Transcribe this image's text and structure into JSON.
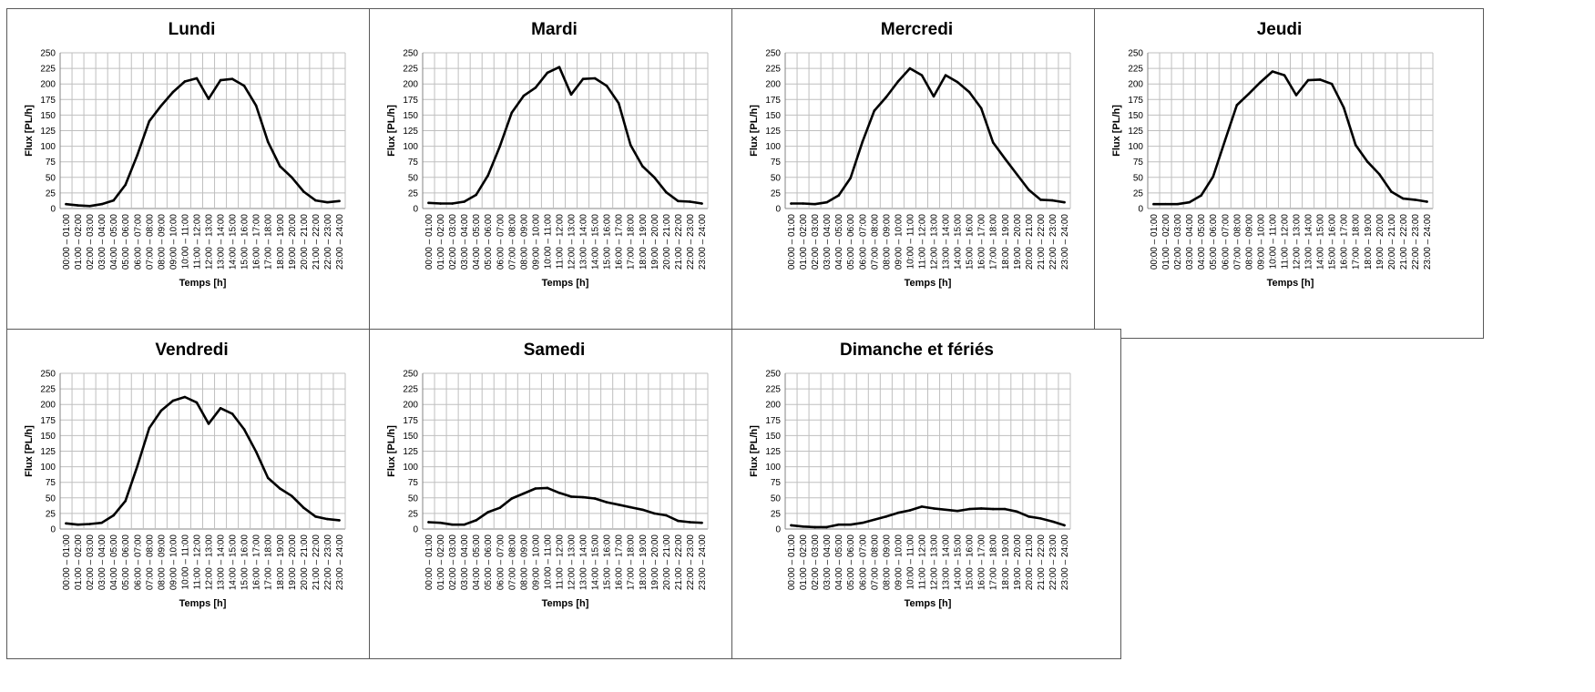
{
  "chart_data": [
    {
      "type": "line",
      "title": "Lundi",
      "xlabel": "Temps [h]",
      "ylabel": "Flux [PL/h]",
      "ylim": [
        0,
        250
      ],
      "yticks": [
        0,
        25,
        50,
        75,
        100,
        125,
        150,
        175,
        200,
        225,
        250
      ],
      "grid": true,
      "categories": [
        "00:00 – 01:00",
        "01:00 – 02:00",
        "02:00 – 03:00",
        "03:00 – 04:00",
        "04:00 – 05:00",
        "05:00 – 06:00",
        "06:00 – 07:00",
        "07:00 – 08:00",
        "08:00 – 09:00",
        "09:00 – 10:00",
        "10:00 – 11:00",
        "11:00 – 12:00",
        "12:00 – 13:00",
        "13:00 – 14:00",
        "14:00 – 15:00",
        "15:00 – 16:00",
        "16:00 – 17:00",
        "17:00 – 18:00",
        "18:00 – 19:00",
        "19:00 – 20:00",
        "20:00 – 21:00",
        "21:00 – 22:00",
        "22:00 – 23:00",
        "23:00 – 24:00"
      ],
      "values": [
        7,
        5,
        4,
        7,
        13,
        38,
        86,
        140,
        165,
        187,
        204,
        209,
        176,
        206,
        208,
        197,
        165,
        107,
        68,
        50,
        27,
        13,
        10,
        12
      ]
    },
    {
      "type": "line",
      "title": "Mardi",
      "xlabel": "Temps [h]",
      "ylabel": "Flux [PL/h]",
      "ylim": [
        0,
        250
      ],
      "yticks": [
        0,
        25,
        50,
        75,
        100,
        125,
        150,
        175,
        200,
        225,
        250
      ],
      "grid": true,
      "categories": [
        "00:00 – 01:00",
        "01:00 – 02:00",
        "02:00 – 03:00",
        "03:00 – 04:00",
        "04:00 – 05:00",
        "05:00 – 06:00",
        "06:00 – 07:00",
        "07:00 – 08:00",
        "08:00 – 09:00",
        "09:00 – 10:00",
        "10:00 – 11:00",
        "11:00 – 12:00",
        "12:00 – 13:00",
        "13:00 – 14:00",
        "14:00 – 15:00",
        "15:00 – 16:00",
        "16:00 – 17:00",
        "17:00 – 18:00",
        "18:00 – 19:00",
        "19:00 – 20:00",
        "20:00 – 21:00",
        "21:00 – 22:00",
        "22:00 – 23:00",
        "23:00 – 24:00"
      ],
      "values": [
        9,
        8,
        8,
        11,
        22,
        53,
        100,
        154,
        181,
        194,
        218,
        227,
        183,
        208,
        209,
        197,
        169,
        102,
        68,
        50,
        26,
        12,
        11,
        8
      ]
    },
    {
      "type": "line",
      "title": "Mercredi",
      "xlabel": "Temps [h]",
      "ylabel": "Flux [PL/h]",
      "ylim": [
        0,
        250
      ],
      "yticks": [
        0,
        25,
        50,
        75,
        100,
        125,
        150,
        175,
        200,
        225,
        250
      ],
      "grid": true,
      "categories": [
        "00:00 – 01:00",
        "01:00 – 02:00",
        "02:00 – 03:00",
        "03:00 – 04:00",
        "04:00 – 05:00",
        "05:00 – 06:00",
        "06:00 – 07:00",
        "07:00 – 08:00",
        "08:00 – 09:00",
        "09:00 – 10:00",
        "10:00 – 11:00",
        "11:00 – 12:00",
        "12:00 – 13:00",
        "13:00 – 14:00",
        "14:00 – 15:00",
        "15:00 – 16:00",
        "16:00 – 17:00",
        "17:00 – 18:00",
        "18:00 – 19:00",
        "19:00 – 20:00",
        "20:00 – 21:00",
        "21:00 – 22:00",
        "22:00 – 23:00",
        "23:00 – 24:00"
      ],
      "values": [
        8,
        8,
        7,
        10,
        21,
        49,
        107,
        157,
        179,
        204,
        225,
        214,
        180,
        214,
        203,
        187,
        161,
        106,
        80,
        55,
        30,
        14,
        13,
        10
      ]
    },
    {
      "type": "line",
      "title": "Jeudi",
      "xlabel": "Temps [h]",
      "ylabel": "Flux [PL/h]",
      "ylim": [
        0,
        250
      ],
      "yticks": [
        0,
        25,
        50,
        75,
        100,
        125,
        150,
        175,
        200,
        225,
        250
      ],
      "grid": true,
      "categories": [
        "00:00 – 01:00",
        "01:00 – 02:00",
        "02:00 – 03:00",
        "03:00 – 04:00",
        "04:00 – 05:00",
        "05:00 – 06:00",
        "06:00 – 07:00",
        "07:00 – 08:00",
        "08:00 – 09:00",
        "09:00 – 10:00",
        "10:00 – 11:00",
        "11:00 – 12:00",
        "12:00 – 13:00",
        "13:00 – 14:00",
        "14:00 – 15:00",
        "15:00 – 16:00",
        "16:00 – 17:00",
        "17:00 – 18:00",
        "18:00 – 19:00",
        "19:00 – 20:00",
        "20:00 – 21:00",
        "21:00 – 22:00",
        "22:00 – 23:00",
        "23:00 – 24:00"
      ],
      "values": [
        7,
        7,
        7,
        10,
        21,
        51,
        109,
        166,
        184,
        203,
        220,
        214,
        182,
        206,
        207,
        200,
        162,
        102,
        75,
        55,
        27,
        16,
        14,
        11
      ]
    },
    {
      "type": "line",
      "title": "Vendredi",
      "xlabel": "Temps [h]",
      "ylabel": "Flux [PL/h]",
      "ylim": [
        0,
        250
      ],
      "yticks": [
        0,
        25,
        50,
        75,
        100,
        125,
        150,
        175,
        200,
        225,
        250
      ],
      "grid": true,
      "categories": [
        "00:00 – 01:00",
        "01:00 – 02:00",
        "02:00 – 03:00",
        "03:00 – 04:00",
        "04:00 – 05:00",
        "05:00 – 06:00",
        "06:00 – 07:00",
        "07:00 – 08:00",
        "08:00 – 09:00",
        "09:00 – 10:00",
        "10:00 – 11:00",
        "11:00 – 12:00",
        "12:00 – 13:00",
        "13:00 – 14:00",
        "14:00 – 15:00",
        "15:00 – 16:00",
        "16:00 – 17:00",
        "17:00 – 18:00",
        "18:00 – 19:00",
        "19:00 – 20:00",
        "20:00 – 21:00",
        "21:00 – 22:00",
        "22:00 – 23:00",
        "23:00 – 24:00"
      ],
      "values": [
        9,
        7,
        8,
        10,
        22,
        45,
        101,
        162,
        190,
        206,
        212,
        203,
        169,
        194,
        185,
        160,
        124,
        82,
        65,
        53,
        34,
        20,
        16,
        14
      ]
    },
    {
      "type": "line",
      "title": "Samedi",
      "xlabel": "Temps [h]",
      "ylabel": "Flux [PL/h]",
      "ylim": [
        0,
        250
      ],
      "yticks": [
        0,
        25,
        50,
        75,
        100,
        125,
        150,
        175,
        200,
        225,
        250
      ],
      "grid": true,
      "categories": [
        "00:00 – 01:00",
        "01:00 – 02:00",
        "02:00 – 03:00",
        "03:00 – 04:00",
        "04:00 – 05:00",
        "05:00 – 06:00",
        "06:00 – 07:00",
        "07:00 – 08:00",
        "08:00 – 09:00",
        "09:00 – 10:00",
        "10:00 – 11:00",
        "11:00 – 12:00",
        "12:00 – 13:00",
        "13:00 – 14:00",
        "14:00 – 15:00",
        "15:00 – 16:00",
        "16:00 – 17:00",
        "17:00 – 18:00",
        "18:00 – 19:00",
        "19:00 – 20:00",
        "20:00 – 21:00",
        "21:00 – 22:00",
        "22:00 – 23:00",
        "23:00 – 24:00"
      ],
      "values": [
        11,
        10,
        7,
        7,
        14,
        27,
        34,
        49,
        57,
        65,
        66,
        58,
        52,
        51,
        49,
        43,
        39,
        35,
        31,
        25,
        22,
        13,
        11,
        10
      ]
    },
    {
      "type": "line",
      "title": "Dimanche et fériés",
      "xlabel": "Temps [h]",
      "ylabel": "Flux [PL/h]",
      "ylim": [
        0,
        250
      ],
      "yticks": [
        0,
        25,
        50,
        75,
        100,
        125,
        150,
        175,
        200,
        225,
        250
      ],
      "grid": true,
      "categories": [
        "00:00 – 01:00",
        "01:00 – 02:00",
        "02:00 – 03:00",
        "03:00 – 04:00",
        "04:00 – 05:00",
        "05:00 – 06:00",
        "06:00 – 07:00",
        "07:00 – 08:00",
        "08:00 – 09:00",
        "09:00 – 10:00",
        "10:00 – 11:00",
        "11:00 – 12:00",
        "12:00 – 13:00",
        "13:00 – 14:00",
        "14:00 – 15:00",
        "15:00 – 16:00",
        "16:00 – 17:00",
        "17:00 – 18:00",
        "18:00 – 19:00",
        "19:00 – 20:00",
        "20:00 – 21:00",
        "21:00 – 22:00",
        "22:00 – 23:00",
        "23:00 – 24:00"
      ],
      "values": [
        6,
        4,
        3,
        3,
        7,
        7,
        10,
        15,
        20,
        26,
        30,
        36,
        33,
        31,
        29,
        32,
        33,
        32,
        32,
        28,
        20,
        17,
        12,
        6
      ]
    }
  ]
}
